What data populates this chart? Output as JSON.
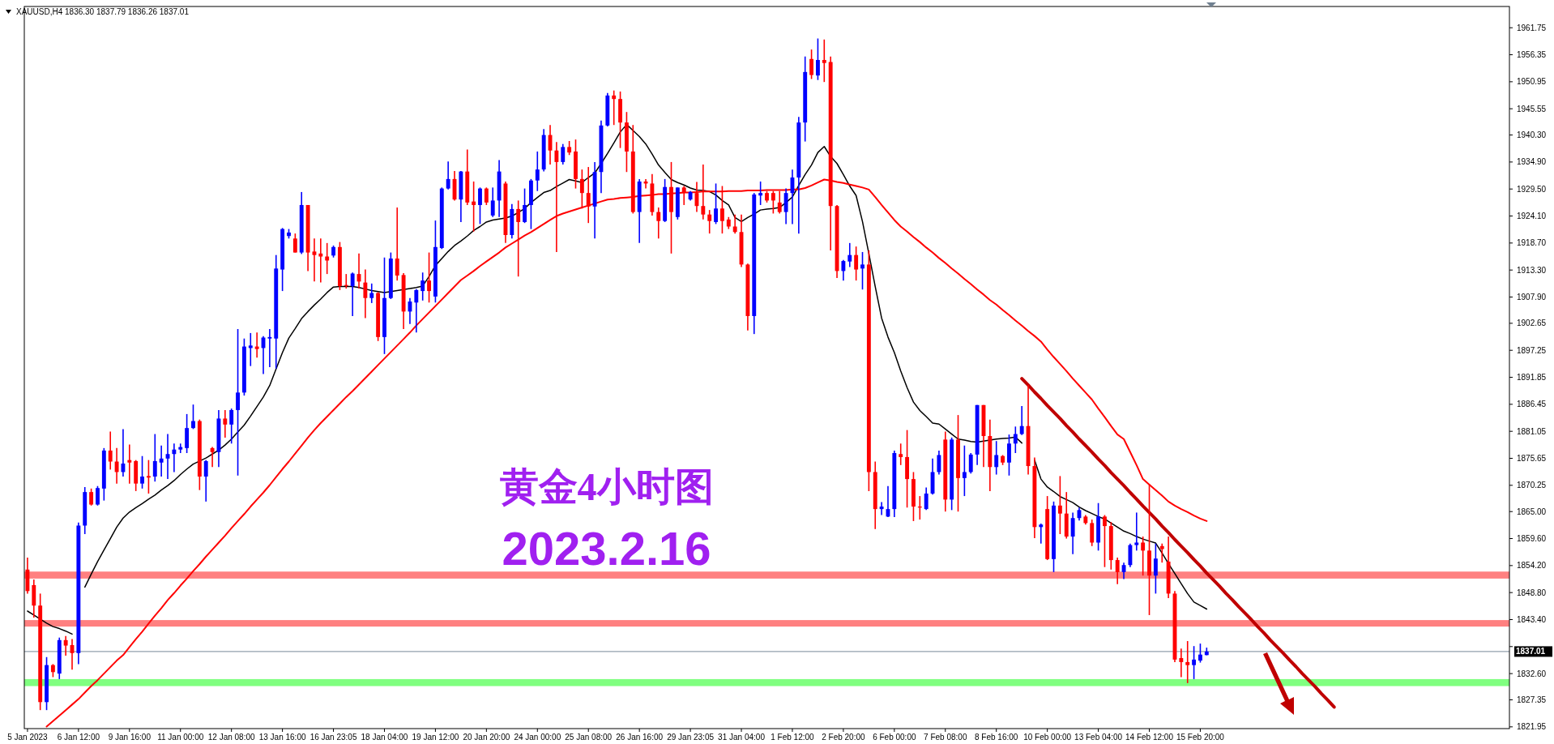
{
  "chart_data": {
    "type": "candlestick",
    "title": "黄金4小时图",
    "subtitle": "2023.2.16",
    "annotations": [
      "XAUUSD,H4  1836.30 1837.79 1836.26 1837.01"
    ],
    "categories": [
      "5 Jan 2023",
      null,
      null,
      null,
      null,
      null,
      null,
      null,
      "6 Jan 12:00",
      null,
      null,
      null,
      null,
      null,
      null,
      null,
      "9 Jan 16:00",
      null,
      null,
      null,
      null,
      null,
      null,
      null,
      "11 Jan 00:00",
      null,
      null,
      null,
      null,
      null,
      null,
      null,
      "12 Jan 08:00",
      null,
      null,
      null,
      null,
      null,
      null,
      null,
      "13 Jan 16:00",
      null,
      null,
      null,
      null,
      null,
      null,
      null,
      "16 Jan 23:05",
      null,
      null,
      null,
      null,
      null,
      null,
      null,
      "18 Jan 04:00",
      null,
      null,
      null,
      null,
      null,
      null,
      null,
      "19 Jan 12:00",
      null,
      null,
      null,
      null,
      null,
      null,
      null,
      "20 Jan 20:00",
      null,
      null,
      null,
      null,
      null,
      null,
      null,
      "24 Jan 00:00",
      null,
      null,
      null,
      null,
      null,
      null,
      null,
      "25 Jan 08:00",
      null,
      null,
      null,
      null,
      null,
      null,
      null,
      "26 Jan 16:00",
      null,
      null,
      null,
      null,
      null,
      null,
      null,
      "29 Jan 23:05",
      null,
      null,
      null,
      null,
      null,
      null,
      null,
      "31 Jan 04:00",
      null,
      null,
      null,
      null,
      null,
      null,
      null,
      "1 Feb 12:00",
      null,
      null,
      null,
      null,
      null,
      null,
      null,
      "2 Feb 20:00",
      null,
      null,
      null,
      null,
      null,
      null,
      null,
      "6 Feb 00:00",
      null,
      null,
      null,
      null,
      null,
      null,
      null,
      "7 Feb 08:00",
      null,
      null,
      null,
      null,
      null,
      null,
      null,
      "8 Feb 16:00",
      null,
      null,
      null,
      null,
      null,
      null,
      null,
      "10 Feb 00:00",
      null,
      null,
      null,
      null,
      null,
      null,
      null,
      "13 Feb 04:00",
      null,
      null,
      null,
      null,
      null,
      null,
      null,
      "14 Feb 12:00",
      null,
      null,
      null,
      null,
      null,
      null,
      null,
      "15 Feb 20:00",
      null,
      null,
      null,
      null,
      null,
      null,
      null,
      null,
      null,
      null,
      null,
      null,
      null,
      null,
      null,
      null,
      null,
      null,
      null,
      null,
      null,
      null,
      null,
      null,
      null,
      null,
      null,
      null,
      null,
      null,
      null,
      null,
      null,
      null,
      null,
      null,
      null,
      null,
      null,
      null,
      null,
      null,
      null,
      null,
      null,
      null,
      null,
      null
    ],
    "ohlc": [
      [
        1853.4,
        1855.8,
        1848.6,
        1849.1
      ],
      [
        1850.3,
        1851.4,
        1843.8,
        1846.2
      ],
      [
        1846.2,
        1848.6,
        1825.3,
        1826.9
      ],
      [
        1826.9,
        1835.9,
        1825.3,
        1834.3
      ],
      [
        1834.3,
        1834.5,
        1831.9,
        1832.9
      ],
      [
        1832.6,
        1839.8,
        1831.5,
        1839.3
      ],
      [
        1839.3,
        1840.1,
        1836.2,
        1838.2
      ],
      [
        1838.3,
        1839.5,
        1833.4,
        1836.7
      ],
      [
        1836.7,
        1862.8,
        1834.5,
        1862.2
      ],
      [
        1862.2,
        1869.9,
        1860.5,
        1868.9
      ],
      [
        1868.9,
        1869.6,
        1866.2,
        1866.4
      ],
      [
        1866.4,
        1870.1,
        1866.2,
        1869.7
      ],
      [
        1869.6,
        1877.7,
        1867.2,
        1877.2
      ],
      [
        1877.2,
        1881.0,
        1873.4,
        1875.0
      ],
      [
        1875.0,
        1877.7,
        1870.6,
        1872.9
      ],
      [
        1872.9,
        1881.5,
        1872.0,
        1874.6
      ],
      [
        1875.3,
        1878.4,
        1870.6,
        1874.8
      ],
      [
        1875.1,
        1875.3,
        1869.1,
        1870.6
      ],
      [
        1870.6,
        1876.1,
        1869.6,
        1872.0
      ],
      [
        1872.1,
        1875.3,
        1868.6,
        1871.8
      ],
      [
        1872.0,
        1880.5,
        1871.0,
        1875.1
      ],
      [
        1874.8,
        1878.2,
        1872.0,
        1875.6
      ],
      [
        1875.6,
        1880.5,
        1871.5,
        1876.5
      ],
      [
        1876.5,
        1878.6,
        1872.9,
        1877.4
      ],
      [
        1877.4,
        1878.6,
        1876.7,
        1877.9
      ],
      [
        1877.7,
        1884.5,
        1876.7,
        1881.7
      ],
      [
        1881.7,
        1886.4,
        1881.5,
        1883.1
      ],
      [
        1883.1,
        1883.4,
        1869.3,
        1872.0
      ],
      [
        1872.0,
        1875.3,
        1867.0,
        1875.1
      ],
      [
        1877.7,
        1877.9,
        1873.9,
        1876.9
      ],
      [
        1876.9,
        1885.3,
        1873.9,
        1883.6
      ],
      [
        1883.6,
        1885.3,
        1879.8,
        1882.4
      ],
      [
        1882.4,
        1885.6,
        1878.6,
        1885.3
      ],
      [
        1885.3,
        1901.5,
        1872.2,
        1888.8
      ],
      [
        1888.8,
        1899.6,
        1888.2,
        1898.0
      ],
      [
        1897.7,
        1900.7,
        1894.1,
        1898.2
      ],
      [
        1898.0,
        1900.8,
        1895.8,
        1897.5
      ],
      [
        1897.7,
        1900.1,
        1892.5,
        1899.8
      ],
      [
        1899.6,
        1901.5,
        1893.9,
        1899.9
      ],
      [
        1899.6,
        1916.3,
        1893.6,
        1913.6
      ],
      [
        1913.4,
        1921.7,
        1909.1,
        1921.5
      ],
      [
        1920.1,
        1921.5,
        1919.6,
        1920.8
      ],
      [
        1919.6,
        1920.6,
        1916.8,
        1916.8
      ],
      [
        1916.8,
        1928.9,
        1916.5,
        1926.3
      ],
      [
        1926.3,
        1926.3,
        1913.1,
        1916.8
      ],
      [
        1917.0,
        1919.6,
        1911.0,
        1916.3
      ],
      [
        1916.6,
        1919.6,
        1910.8,
        1916.0
      ],
      [
        1916.0,
        1918.7,
        1912.5,
        1915.2
      ],
      [
        1916.2,
        1918.2,
        1915.8,
        1917.9
      ],
      [
        1917.9,
        1918.9,
        1909.3,
        1910.1
      ],
      [
        1910.3,
        1912.5,
        1909.6,
        1910.1
      ],
      [
        1910.1,
        1912.8,
        1904.1,
        1912.6
      ],
      [
        1912.5,
        1916.6,
        1909.6,
        1911.0
      ],
      [
        1910.8,
        1913.4,
        1903.7,
        1907.7
      ],
      [
        1907.7,
        1910.6,
        1906.7,
        1908.7
      ],
      [
        1908.7,
        1908.9,
        1899.1,
        1899.9
      ],
      [
        1899.9,
        1915.8,
        1896.5,
        1907.7
      ],
      [
        1907.7,
        1916.8,
        1907.5,
        1915.6
      ],
      [
        1915.6,
        1925.8,
        1911.2,
        1912.2
      ],
      [
        1912.3,
        1912.7,
        1901.5,
        1905.0
      ],
      [
        1905.0,
        1907.7,
        1902.5,
        1907.0
      ],
      [
        1906.8,
        1909.5,
        1900.8,
        1909.3
      ],
      [
        1909.1,
        1912.8,
        1907.2,
        1911.2
      ],
      [
        1911.2,
        1916.8,
        1906.8,
        1909.1
      ],
      [
        1908.0,
        1923.2,
        1906.8,
        1917.9
      ],
      [
        1917.7,
        1929.8,
        1917.5,
        1929.6
      ],
      [
        1929.6,
        1935.0,
        1929.4,
        1931.5
      ],
      [
        1931.5,
        1933.1,
        1927.2,
        1927.4
      ],
      [
        1927.4,
        1933.1,
        1922.9,
        1933.0
      ],
      [
        1933.0,
        1937.4,
        1926.3,
        1926.8
      ],
      [
        1927.0,
        1931.0,
        1921.0,
        1926.3
      ],
      [
        1926.3,
        1929.8,
        1922.5,
        1929.6
      ],
      [
        1929.6,
        1929.8,
        1926.3,
        1926.8
      ],
      [
        1924.2,
        1929.8,
        1923.9,
        1927.2
      ],
      [
        1927.2,
        1935.3,
        1923.9,
        1933.0
      ],
      [
        1930.6,
        1931.0,
        1918.7,
        1920.3
      ],
      [
        1920.3,
        1926.5,
        1919.6,
        1925.5
      ],
      [
        1925.5,
        1927.2,
        1912.0,
        1922.9
      ],
      [
        1922.9,
        1929.6,
        1922.7,
        1926.3
      ],
      [
        1926.3,
        1931.5,
        1921.5,
        1931.2
      ],
      [
        1931.2,
        1937.0,
        1929.1,
        1933.4
      ],
      [
        1933.4,
        1941.5,
        1933.0,
        1940.3
      ],
      [
        1940.3,
        1942.3,
        1934.4,
        1937.2
      ],
      [
        1937.2,
        1938.9,
        1916.9,
        1934.9
      ],
      [
        1934.9,
        1938.5,
        1934.4,
        1937.9
      ],
      [
        1937.9,
        1939.1,
        1936.3,
        1936.8
      ],
      [
        1937.0,
        1939.4,
        1929.6,
        1931.5
      ],
      [
        1931.5,
        1933.4,
        1925.6,
        1928.7
      ],
      [
        1928.7,
        1933.9,
        1922.7,
        1926.0
      ],
      [
        1926.0,
        1934.9,
        1919.6,
        1932.9
      ],
      [
        1932.9,
        1943.2,
        1928.7,
        1942.2
      ],
      [
        1942.2,
        1948.7,
        1942.0,
        1948.2
      ],
      [
        1948.2,
        1949.2,
        1942.3,
        1947.5
      ],
      [
        1947.5,
        1949.0,
        1937.7,
        1942.8
      ],
      [
        1942.8,
        1944.9,
        1932.9,
        1937.0
      ],
      [
        1937.0,
        1942.3,
        1924.6,
        1924.9
      ],
      [
        1924.9,
        1931.5,
        1918.7,
        1931.0
      ],
      [
        1931.0,
        1931.5,
        1929.6,
        1930.6
      ],
      [
        1930.6,
        1932.5,
        1924.2,
        1924.9
      ],
      [
        1924.9,
        1925.8,
        1919.6,
        1923.1
      ],
      [
        1923.1,
        1931.5,
        1922.9,
        1929.9
      ],
      [
        1929.9,
        1934.9,
        1916.6,
        1924.9
      ],
      [
        1923.9,
        1929.8,
        1923.4,
        1929.8
      ],
      [
        1929.8,
        1930.1,
        1926.3,
        1928.7
      ],
      [
        1927.4,
        1929.1,
        1927.2,
        1928.9
      ],
      [
        1928.7,
        1930.9,
        1924.9,
        1926.1
      ],
      [
        1926.1,
        1934.4,
        1923.4,
        1924.4
      ],
      [
        1924.4,
        1925.3,
        1920.6,
        1923.1
      ],
      [
        1922.9,
        1930.6,
        1922.5,
        1925.6
      ],
      [
        1925.6,
        1930.1,
        1920.6,
        1923.1
      ],
      [
        1923.4,
        1923.9,
        1921.5,
        1922.0
      ],
      [
        1922.0,
        1924.4,
        1920.6,
        1920.9
      ],
      [
        1920.9,
        1924.4,
        1913.9,
        1914.4
      ],
      [
        1914.4,
        1914.6,
        1901.2,
        1904.1
      ],
      [
        1904.1,
        1928.7,
        1900.5,
        1928.4
      ],
      [
        1928.2,
        1931.0,
        1926.3,
        1928.7
      ],
      [
        1928.7,
        1929.1,
        1926.8,
        1927.2
      ],
      [
        1928.7,
        1929.1,
        1924.6,
        1927.2
      ],
      [
        1926.8,
        1929.1,
        1924.6,
        1924.9
      ],
      [
        1924.9,
        1929.6,
        1922.5,
        1928.7
      ],
      [
        1928.7,
        1933.4,
        1922.5,
        1931.8
      ],
      [
        1931.8,
        1943.9,
        1920.6,
        1942.8
      ],
      [
        1942.8,
        1956.0,
        1939.0,
        1952.9
      ],
      [
        1955.5,
        1957.4,
        1951.5,
        1952.3
      ],
      [
        1952.2,
        1959.6,
        1951.3,
        1955.3
      ],
      [
        1955.3,
        1959.4,
        1950.9,
        1954.7
      ],
      [
        1954.9,
        1956.0,
        1917.2,
        1926.1
      ],
      [
        1926.1,
        1926.3,
        1911.7,
        1913.1
      ],
      [
        1913.1,
        1915.3,
        1911.2,
        1915.1
      ],
      [
        1915.0,
        1918.7,
        1913.9,
        1916.3
      ],
      [
        1916.3,
        1918.0,
        1911.2,
        1913.4
      ],
      [
        1913.6,
        1916.9,
        1909.4,
        1914.4
      ],
      [
        1914.4,
        1917.2,
        1869.1,
        1872.9
      ],
      [
        1872.9,
        1875.0,
        1861.5,
        1865.5
      ],
      [
        1865.5,
        1866.9,
        1864.3,
        1866.0
      ],
      [
        1864.0,
        1870.1,
        1863.9,
        1865.5
      ],
      [
        1865.5,
        1877.2,
        1863.9,
        1876.7
      ],
      [
        1876.5,
        1878.6,
        1874.3,
        1875.9
      ],
      [
        1875.9,
        1881.3,
        1865.8,
        1871.5
      ],
      [
        1871.5,
        1872.9,
        1863.1,
        1866.0
      ],
      [
        1866.0,
        1868.1,
        1863.4,
        1865.8
      ],
      [
        1865.5,
        1869.8,
        1865.3,
        1868.6
      ],
      [
        1868.6,
        1875.6,
        1868.4,
        1872.9
      ],
      [
        1872.9,
        1877.2,
        1872.4,
        1876.3
      ],
      [
        1879.4,
        1881.0,
        1865.0,
        1867.4
      ],
      [
        1867.4,
        1879.8,
        1865.3,
        1879.4
      ],
      [
        1879.4,
        1884.3,
        1865.0,
        1871.7
      ],
      [
        1871.7,
        1878.2,
        1868.1,
        1872.9
      ],
      [
        1872.9,
        1876.7,
        1872.6,
        1876.4
      ],
      [
        1876.4,
        1886.3,
        1874.3,
        1886.3
      ],
      [
        1886.3,
        1886.3,
        1873.9,
        1880.1
      ],
      [
        1880.1,
        1883.4,
        1869.1,
        1873.9
      ],
      [
        1873.9,
        1879.1,
        1872.4,
        1876.3
      ],
      [
        1876.1,
        1876.3,
        1874.3,
        1874.8
      ],
      [
        1874.8,
        1880.4,
        1872.2,
        1878.6
      ],
      [
        1878.6,
        1882.0,
        1876.7,
        1880.5
      ],
      [
        1880.5,
        1886.1,
        1880.3,
        1882.1
      ],
      [
        1882.1,
        1890.3,
        1872.4,
        1874.1
      ],
      [
        1874.1,
        1875.8,
        1859.7,
        1861.9
      ],
      [
        1861.9,
        1862.6,
        1858.6,
        1862.4
      ],
      [
        1865.5,
        1868.1,
        1855.3,
        1855.5
      ],
      [
        1855.5,
        1867.0,
        1852.9,
        1866.2
      ],
      [
        1866.2,
        1872.1,
        1860.5,
        1864.6
      ],
      [
        1864.6,
        1868.9,
        1859.6,
        1860.0
      ],
      [
        1860.0,
        1864.8,
        1856.5,
        1863.7
      ],
      [
        1863.7,
        1865.8,
        1863.2,
        1865.3
      ],
      [
        1864.0,
        1864.3,
        1862.4,
        1862.7
      ],
      [
        1862.7,
        1863.4,
        1858.1,
        1858.8
      ],
      [
        1858.8,
        1866.7,
        1857.2,
        1864.0
      ],
      [
        1864.0,
        1864.3,
        1853.9,
        1862.1
      ],
      [
        1862.1,
        1862.9,
        1853.4,
        1855.3
      ],
      [
        1855.3,
        1855.8,
        1850.5,
        1852.9
      ],
      [
        1852.9,
        1854.8,
        1851.5,
        1854.3
      ],
      [
        1854.3,
        1858.6,
        1853.9,
        1858.3
      ],
      [
        1858.3,
        1864.8,
        1857.2,
        1858.8
      ],
      [
        1858.8,
        1860.0,
        1852.2,
        1857.2
      ],
      [
        1857.2,
        1870.5,
        1844.3,
        1852.2
      ],
      [
        1852.2,
        1858.6,
        1848.6,
        1855.6
      ],
      [
        1858.1,
        1858.6,
        1854.8,
        1857.5
      ],
      [
        1855.0,
        1860.0,
        1847.7,
        1848.6
      ],
      [
        1848.6,
        1849.1,
        1834.9,
        1835.4
      ],
      [
        1835.7,
        1837.6,
        1831.9,
        1834.9
      ],
      [
        1834.9,
        1839.1,
        1830.7,
        1834.3
      ],
      [
        1834.3,
        1838.1,
        1831.5,
        1835.4
      ],
      [
        1835.2,
        1838.6,
        1834.8,
        1836.4
      ],
      [
        1836.3,
        1837.79,
        1836.26,
        1837.01
      ],
      null,
      null,
      null,
      null,
      null,
      null,
      null,
      null,
      null,
      null,
      null,
      null,
      null,
      null,
      null,
      null,
      null,
      null,
      null,
      null,
      null,
      null,
      null,
      null,
      null,
      null,
      null,
      null,
      null,
      null,
      null,
      null,
      null,
      null,
      null,
      null,
      null,
      null,
      null,
      null,
      null,
      null,
      null,
      null,
      null,
      null,
      null
    ],
    "colors": [
      "#ff0000",
      "#ff0000",
      "#ff0000",
      "#0000ff",
      "#ff0000",
      "#0000ff",
      "#ff0000",
      "#ff0000",
      "#0000ff",
      "#0000ff",
      "#ff0000",
      "#0000ff",
      "#0000ff",
      "#ff0000",
      "#ff0000",
      "#0000ff",
      "#ff0000",
      "#ff0000",
      "#0000ff",
      "#ff0000",
      "#0000ff",
      "#0000ff",
      "#0000ff",
      "#0000ff",
      "#0000ff",
      "#0000ff",
      "#0000ff",
      "#ff0000",
      "#0000ff",
      "#ff0000",
      "#0000ff",
      "#ff0000",
      "#0000ff",
      "#0000ff",
      "#0000ff",
      "#0000ff",
      "#ff0000",
      "#0000ff",
      "#0000ff",
      "#0000ff",
      "#0000ff",
      "#0000ff",
      "#ff0000",
      "#0000ff",
      "#ff0000",
      "#ff0000",
      "#ff0000",
      "#ff0000",
      "#0000ff",
      "#ff0000",
      "#ff0000",
      "#0000ff",
      "#ff0000",
      "#ff0000",
      "#0000ff",
      "#ff0000",
      "#0000ff",
      "#0000ff",
      "#ff0000",
      "#ff0000",
      "#0000ff",
      "#0000ff",
      "#0000ff",
      "#ff0000",
      "#0000ff",
      "#0000ff",
      "#0000ff",
      "#ff0000",
      "#0000ff",
      "#ff0000",
      "#ff0000",
      "#0000ff",
      "#ff0000",
      "#0000ff",
      "#0000ff",
      "#ff0000",
      "#0000ff",
      "#ff0000",
      "#0000ff",
      "#0000ff",
      "#0000ff",
      "#0000ff",
      "#ff0000",
      "#ff0000",
      "#0000ff",
      "#ff0000",
      "#ff0000",
      "#ff0000",
      "#ff0000",
      "#0000ff",
      "#0000ff",
      "#0000ff",
      "#ff0000",
      "#ff0000",
      "#ff0000",
      "#ff0000",
      "#0000ff",
      "#ff0000",
      "#ff0000",
      "#ff0000",
      "#0000ff",
      "#ff0000",
      "#0000ff",
      "#ff0000",
      "#0000ff",
      "#ff0000",
      "#ff0000",
      "#ff0000",
      "#0000ff",
      "#ff0000",
      "#ff0000",
      "#ff0000",
      "#ff0000",
      "#ff0000",
      "#0000ff",
      "#0000ff",
      "#ff0000",
      "#ff0000",
      "#ff0000",
      "#0000ff",
      "#0000ff",
      "#0000ff",
      "#0000ff",
      "#ff0000",
      "#0000ff",
      "#ff0000",
      "#ff0000",
      "#ff0000",
      "#0000ff",
      "#0000ff",
      "#ff0000",
      "#0000ff",
      "#ff0000",
      "#ff0000",
      "#0000ff",
      "#0000ff",
      "#0000ff",
      "#ff0000",
      "#ff0000",
      "#ff0000",
      "#ff0000",
      "#0000ff",
      "#0000ff",
      "#0000ff",
      "#ff0000",
      "#0000ff",
      "#ff0000",
      "#0000ff",
      "#0000ff",
      "#0000ff",
      "#ff0000",
      "#ff0000",
      "#0000ff",
      "#ff0000",
      "#0000ff",
      "#0000ff",
      "#0000ff",
      "#ff0000",
      "#ff0000",
      "#0000ff",
      "#ff0000",
      "#0000ff",
      "#ff0000",
      "#ff0000",
      "#0000ff",
      "#0000ff",
      "#ff0000",
      "#ff0000",
      "#0000ff",
      "#ff0000",
      "#ff0000",
      "#ff0000",
      "#0000ff",
      "#0000ff",
      "#0000ff",
      "#ff0000",
      "#ff0000",
      "#0000ff",
      "#ff0000",
      "#ff0000",
      "#ff0000",
      "#ff0000",
      "#ff0000",
      "#0000ff",
      "#0000ff",
      "#0000ff",
      null,
      null,
      null,
      null,
      null,
      null,
      null,
      null,
      null,
      null,
      null,
      null,
      null,
      null,
      null,
      null,
      null,
      null,
      null,
      null,
      null,
      null,
      null,
      null,
      null,
      null,
      null,
      null,
      null,
      null,
      null,
      null,
      null,
      null,
      null,
      null,
      null,
      null,
      null,
      null,
      null,
      null,
      null,
      null,
      null,
      null,
      null
    ],
    "series": [
      {
        "type": "line",
        "color": "#000000",
        "values": [
          1845.1,
          1844.3,
          1843.5,
          1842.7,
          1842.0,
          1841.6,
          1841.1,
          1840.5,
          null,
          1849.9,
          1852.5,
          1855.0,
          1857.3,
          1859.6,
          1861.9,
          1863.7,
          1864.9,
          1865.8,
          1866.6,
          1867.5,
          1868.3,
          1869.3,
          1870.2,
          1871.2,
          1872.4,
          1873.5,
          1874.5,
          1875.1,
          1875.7,
          1876.5,
          1877.3,
          1878.3,
          1879.5,
          1880.9,
          1882.3,
          1884.1,
          1886.0,
          1887.9,
          1890.2,
          1893.5,
          1896.8,
          1899.7,
          1901.6,
          1903.6,
          1905.0,
          1906.3,
          1907.5,
          1908.8,
          1909.9,
          1910.0,
          1910.0,
          1910.0,
          1909.8,
          1909.5,
          1909.2,
          1909.0,
          1908.8,
          1909.0,
          1909.2,
          1909.4,
          1909.6,
          1909.8,
          1910.1,
          1912.0,
          1914.2,
          1915.6,
          1917.0,
          1918.2,
          1919.1,
          1920.1,
          1921.2,
          1922.0,
          1922.9,
          1923.3,
          1923.5,
          1923.7,
          1924.1,
          1924.8,
          1925.6,
          1926.8,
          1927.8,
          1928.8,
          1929.2,
          1930.0,
          1930.7,
          1931.4,
          1931.1,
          1930.8,
          1931.8,
          1932.7,
          1934.6,
          1936.6,
          1938.7,
          1940.9,
          1942.4,
          1941.2,
          1940.0,
          1938.5,
          1936.5,
          1934.3,
          1932.8,
          1931.4,
          1930.8,
          1930.3,
          1929.7,
          1929.3,
          1929.2,
          1929.0,
          1928.3,
          1927.2,
          1926.3,
          1923.8,
          1923.0,
          1923.8,
          1924.5,
          1925.3,
          1925.5,
          1925.6,
          1925.8,
          1926.8,
          1927.9,
          1930.2,
          1932.4,
          1934.3,
          1936.8,
          1938.0,
          1936.0,
          1934.6,
          1932.4,
          1930.1,
          1928.2,
          1923.0,
          1916.6,
          1910.0,
          1903.7,
          1899.9,
          1896.8,
          1893.1,
          1889.8,
          1886.9,
          1885.2,
          1884.0,
          1882.7,
          1882.5,
          1881.5,
          1880.5,
          1879.5,
          1879.3,
          1879.0,
          1878.9,
          1879.1,
          1879.3,
          1879.5,
          1879.6,
          1879.7,
          1879.9,
          1878.7,
          null,
          1875.3,
          1871.5,
          1869.9,
          1869.0,
          1868.0,
          1867.4,
          1866.8,
          1865.9,
          1865.2,
          1864.6,
          1864.0,
          1863.5,
          1862.7,
          1861.9,
          1861.1,
          1860.6,
          1860.0,
          1859.5,
          1859.1,
          1858.7,
          1856.7,
          1854.6,
          1852.6,
          1850.6,
          1848.6,
          1846.9,
          1846.2,
          1845.5,
          null,
          null,
          null,
          null,
          null,
          null,
          null,
          null,
          null,
          null,
          null,
          null,
          null,
          null,
          null,
          null,
          null,
          null,
          null,
          null,
          null,
          null,
          null,
          null,
          null,
          null,
          null,
          null,
          null,
          null,
          null,
          null,
          null,
          null,
          null,
          null,
          null,
          null,
          null,
          null,
          null,
          null,
          null,
          null,
          null,
          null,
          null
        ]
      },
      {
        "type": "line",
        "color": "#ff0000",
        "values": [
          null,
          null,
          null,
          1822.0,
          1823.1,
          1824.2,
          1825.3,
          1826.4,
          1827.5,
          1828.8,
          1830.1,
          1831.3,
          1832.6,
          1833.9,
          1835.2,
          1836.3,
          1837.9,
          1839.5,
          1841.0,
          1842.6,
          1844.2,
          1845.7,
          1847.3,
          1848.7,
          1850.2,
          1851.6,
          1853.1,
          1854.5,
          1856.0,
          1857.4,
          1858.8,
          1860.2,
          1861.7,
          1863.1,
          1864.5,
          1866.0,
          1867.4,
          1868.8,
          1870.3,
          1871.9,
          1873.5,
          1875.0,
          1876.6,
          1878.2,
          1879.8,
          1881.3,
          1882.7,
          1884.0,
          1885.3,
          1886.6,
          1887.9,
          1889.1,
          1890.4,
          1891.7,
          1893.0,
          1894.3,
          1895.6,
          1896.9,
          1898.2,
          1899.5,
          1900.8,
          1902.2,
          1903.5,
          1904.8,
          1906.1,
          1907.4,
          1908.7,
          1910.0,
          1911.3,
          1912.2,
          1913.1,
          1914.1,
          1915.0,
          1915.9,
          1916.8,
          1917.8,
          1918.6,
          1919.4,
          1920.2,
          1920.9,
          1921.7,
          1922.5,
          1923.3,
          1924.1,
          1924.6,
          1925.0,
          1925.4,
          1925.8,
          1926.2,
          1926.6,
          1927.0,
          1927.4,
          1927.5,
          1927.7,
          1927.8,
          1927.9,
          1928.1,
          1928.2,
          1928.3,
          1928.5,
          1928.5,
          1928.6,
          1928.7,
          1928.8,
          1928.8,
          1928.9,
          1929.0,
          1929.0,
          1929.0,
          1929.0,
          1929.1,
          1929.1,
          1929.1,
          1929.2,
          1929.2,
          1929.2,
          1929.3,
          1929.3,
          1929.3,
          1929.3,
          1929.4,
          1929.4,
          1929.7,
          1930.2,
          1930.8,
          1931.4,
          1931.2,
          1930.9,
          1930.7,
          1930.4,
          1930.1,
          1929.8,
          1929.4,
          1927.9,
          1926.3,
          1924.8,
          1923.3,
          1922.0,
          1921.0,
          1919.9,
          1918.9,
          1917.8,
          1916.8,
          1915.7,
          1914.7,
          1913.6,
          1912.6,
          1911.5,
          1910.5,
          1909.4,
          1908.4,
          1907.3,
          1906.4,
          1905.3,
          1904.3,
          1903.2,
          1902.2,
          1901.1,
          1900.1,
          1899.0,
          1897.4,
          1895.9,
          1894.5,
          1893.1,
          1891.6,
          1890.2,
          1888.8,
          1887.4,
          1885.6,
          1883.9,
          1882.1,
          1880.4,
          1879.5,
          1876.9,
          1874.3,
          1871.5,
          1870.4,
          1869.3,
          1868.2,
          1867.0,
          1866.2,
          1865.5,
          1864.9,
          1864.2,
          1863.6,
          1863.1,
          null,
          null,
          null,
          null,
          null,
          null,
          null,
          null,
          null,
          null,
          null,
          null,
          null,
          null,
          null,
          null,
          null,
          null,
          null,
          null,
          null,
          null,
          null,
          null,
          null,
          null,
          null,
          null,
          null,
          null,
          null,
          null,
          null,
          null,
          null,
          null,
          null,
          null,
          null,
          null,
          null,
          null,
          null,
          null,
          null,
          null,
          null
        ]
      },
      {
        "type": "line",
        "color": "#c00000",
        "values": [
          null,
          null,
          null,
          null,
          null,
          null,
          null,
          null,
          null,
          null,
          null,
          null,
          null,
          null,
          null,
          null,
          null,
          null,
          null,
          null,
          null,
          null,
          null,
          null,
          null,
          null,
          null,
          null,
          null,
          null,
          null,
          null,
          null,
          null,
          null,
          null,
          null,
          null,
          null,
          null,
          null,
          null,
          null,
          null,
          null,
          null,
          null,
          null,
          null,
          null,
          null,
          null,
          null,
          null,
          null,
          null,
          null,
          null,
          null,
          null,
          null,
          null,
          null,
          null,
          null,
          null,
          null,
          null,
          null,
          null,
          null,
          null,
          null,
          null,
          null,
          null,
          null,
          null,
          null,
          null,
          null,
          null,
          null,
          null,
          null,
          null,
          null,
          null,
          null,
          null,
          null,
          null,
          null,
          null,
          null,
          null,
          null,
          null,
          null,
          null,
          null,
          null,
          null,
          null,
          null,
          null,
          null,
          null,
          null,
          null,
          null,
          null,
          null,
          null,
          null,
          null,
          null,
          null,
          null,
          null,
          null,
          null,
          null,
          null,
          null,
          null,
          null,
          null,
          null,
          null,
          null,
          null,
          null,
          null,
          null,
          null,
          null,
          null,
          null,
          null,
          null,
          null,
          null,
          null,
          null,
          null,
          null,
          null,
          null,
          null,
          null,
          null,
          null,
          null,
          null,
          null,
          1891.6,
          1890.3,
          1888.9,
          1887.6,
          1886.2,
          1884.9,
          1883.6,
          1882.2,
          1880.9,
          1879.5,
          1878.2,
          1876.9,
          1875.5,
          1874.2,
          1872.8,
          1871.5,
          1870.2,
          1868.8,
          1867.5,
          1866.1,
          1864.8,
          1863.5,
          1862.1,
          1860.8,
          1859.4,
          1858.1,
          1856.8,
          1855.4,
          1854.1,
          1852.7,
          1851.4,
          1850.1,
          1848.7,
          1847.4,
          1846.0,
          1844.7,
          1843.4,
          1842.0,
          1840.7,
          1839.3,
          1838.0,
          1836.7,
          1835.3,
          1834.0,
          1832.6,
          1831.3,
          1830.0,
          1828.6,
          1827.3,
          1825.9,
          null,
          null,
          null,
          null,
          null,
          null,
          null,
          null,
          null,
          null,
          null,
          null,
          null,
          null,
          null,
          null,
          null,
          null,
          null,
          null,
          null,
          null,
          null,
          null,
          null,
          null,
          null
        ]
      }
    ],
    "bands": [
      {
        "axis": "y",
        "from": 1851.6,
        "to": 1853.0,
        "color": "#ff8080"
      },
      {
        "axis": "y",
        "from": 1842.0,
        "to": 1843.3,
        "color": "#ff8080"
      },
      {
        "axis": "y",
        "from": 1830.1,
        "to": 1831.5,
        "color": "#80ff80"
      }
    ],
    "ref_lines": [
      {
        "axis": "y",
        "value": 1837.01,
        "label": "1837.01",
        "color": "#778899"
      }
    ],
    "ylim": [
      1821.6,
      1966.0
    ],
    "yticks": [
      1961.75,
      1956.35,
      1950.95,
      1945.55,
      {
        "value": 1940.3,
        "label": "1940.30"
      },
      {
        "value": 1934.9,
        "label": "1934.90"
      },
      {
        "value": 1929.5,
        "label": "1929.50"
      },
      {
        "value": 1924.1,
        "label": "1924.10"
      },
      {
        "value": 1918.7,
        "label": "1918.70"
      },
      {
        "value": 1913.3,
        "label": "1913.30"
      },
      {
        "value": 1907.9,
        "label": "1907.90"
      },
      1902.65,
      1897.25,
      1891.85,
      1886.45,
      1881.05,
      1875.65,
      1870.25,
      {
        "value": 1865,
        "label": "1865.00"
      },
      {
        "value": 1859.6,
        "label": "1859.60"
      },
      {
        "value": 1854.2,
        "label": "1854.20"
      },
      {
        "value": 1848.8,
        "label": "1848.80"
      },
      {
        "value": 1843.4,
        "label": "1843.40"
      },
      {
        "value": 1838,
        "label": null
      },
      {
        "value": 1832.6,
        "label": "1832.60"
      },
      1827.35,
      1821.95
    ]
  }
}
